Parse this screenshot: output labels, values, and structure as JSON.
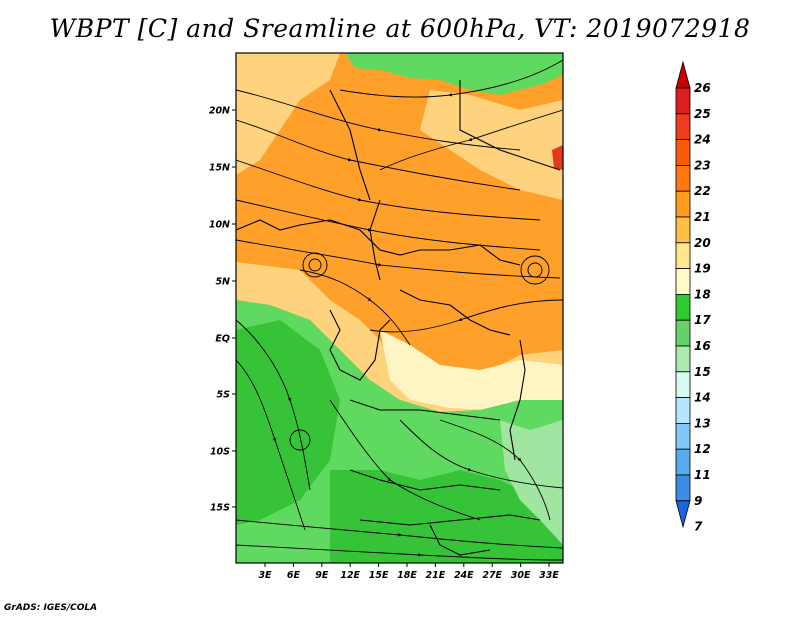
{
  "title": "WBPT [C] and Sreamline at 600hPa, VT: 2019072918",
  "credit": "GrADS: IGES/COLA",
  "map": {
    "lat_ticks": [
      "20N",
      "15N",
      "10N",
      "5N",
      "EQ",
      "5S",
      "10S",
      "15S"
    ],
    "lon_ticks": [
      "3E",
      "6E",
      "9E",
      "12E",
      "15E",
      "18E",
      "21E",
      "24E",
      "27E",
      "30E",
      "33E"
    ],
    "fill_palette": {
      "dark_green": "#37c337",
      "mid_green": "#5fd95f",
      "light_green": "#a0e6a0",
      "pale_cream": "#fff5c4",
      "light_orange": "#ffd27d",
      "orange": "#ffa02a",
      "red": "#e13a1e"
    }
  },
  "colorbar": {
    "labels": [
      "26",
      "25",
      "24",
      "23",
      "22",
      "21",
      "20",
      "19",
      "18",
      "17",
      "16",
      "15",
      "14",
      "13",
      "12",
      "11",
      "9",
      "7"
    ],
    "colors": [
      "#c80000",
      "#dc1e1e",
      "#f03c1e",
      "#fa5a0a",
      "#ff7814",
      "#ff9b1e",
      "#ffbe46",
      "#ffe68c",
      "#fffac8",
      "#32c832",
      "#64d264",
      "#aaeab0",
      "#d8f8f0",
      "#b4e6ff",
      "#82c8f5",
      "#5aaaf0",
      "#3c8ce6",
      "#1e64dc"
    ]
  }
}
